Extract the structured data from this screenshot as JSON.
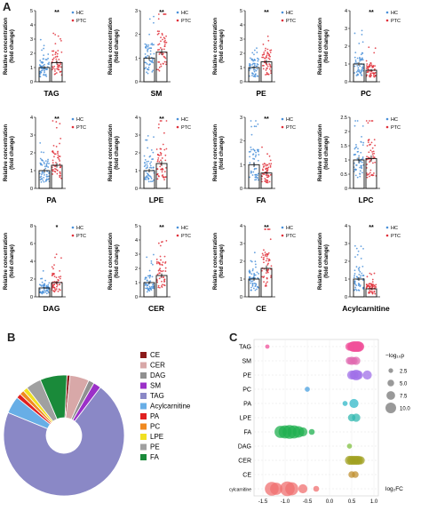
{
  "panel_letters": {
    "a": "A",
    "b": "B",
    "c": "C"
  },
  "legend": {
    "hc": "HC",
    "ptc": "PTC"
  },
  "colors": {
    "hc": "#4a90d9",
    "ptc": "#e0303a",
    "axis": "#222222"
  },
  "ylabel_top": "Relative concentration",
  "ylabel_bottom": "(fold change)",
  "chart_data": [
    {
      "type": "bar",
      "title": "TAG",
      "categories": [
        "HC",
        "PTC"
      ],
      "values": [
        1.0,
        1.35
      ],
      "significance": "**",
      "ylim": [
        0,
        5
      ],
      "yticks": [
        0,
        1,
        2,
        3,
        4,
        5
      ]
    },
    {
      "type": "bar",
      "title": "SM",
      "categories": [
        "HC",
        "PTC"
      ],
      "values": [
        1.0,
        1.25
      ],
      "significance": "**",
      "ylim": [
        0,
        3
      ],
      "yticks": [
        0,
        1,
        2,
        3
      ]
    },
    {
      "type": "bar",
      "title": "PE",
      "categories": [
        "HC",
        "PTC"
      ],
      "values": [
        1.0,
        1.4
      ],
      "significance": "**",
      "ylim": [
        0,
        5
      ],
      "yticks": [
        0,
        1,
        2,
        3,
        4,
        5
      ]
    },
    {
      "type": "bar",
      "title": "PC",
      "categories": [
        "HC",
        "PTC"
      ],
      "values": [
        1.0,
        0.65
      ],
      "significance": "**",
      "ylim": [
        0,
        4
      ],
      "yticks": [
        0,
        1,
        2,
        3,
        4
      ]
    },
    {
      "type": "bar",
      "title": "PA",
      "categories": [
        "HC",
        "PTC"
      ],
      "values": [
        1.0,
        1.3
      ],
      "significance": "**",
      "ylim": [
        0,
        4
      ],
      "yticks": [
        0,
        1,
        2,
        3,
        4
      ]
    },
    {
      "type": "bar",
      "title": "LPE",
      "categories": [
        "HC",
        "PTC"
      ],
      "values": [
        1.0,
        1.4
      ],
      "significance": "**",
      "ylim": [
        0,
        4
      ],
      "yticks": [
        0,
        1,
        2,
        3,
        4
      ]
    },
    {
      "type": "bar",
      "title": "FA",
      "categories": [
        "HC",
        "PTC"
      ],
      "values": [
        1.0,
        0.65
      ],
      "significance": "**",
      "ylim": [
        0,
        3
      ],
      "yticks": [
        0,
        1,
        2,
        3
      ]
    },
    {
      "type": "bar",
      "title": "LPC",
      "categories": [
        "HC",
        "PTC"
      ],
      "values": [
        1.0,
        1.05
      ],
      "significance": "",
      "ylim": [
        0,
        2.5
      ],
      "yticks": [
        0.0,
        0.5,
        1.0,
        1.5,
        2.0,
        2.5
      ]
    },
    {
      "type": "bar",
      "title": "DAG",
      "categories": [
        "HC",
        "PTC"
      ],
      "values": [
        1.0,
        1.6
      ],
      "significance": "*",
      "ylim": [
        0,
        8
      ],
      "yticks": [
        0,
        2,
        4,
        6,
        8
      ]
    },
    {
      "type": "bar",
      "title": "CER",
      "categories": [
        "HC",
        "PTC"
      ],
      "values": [
        1.0,
        1.5
      ],
      "significance": "**",
      "ylim": [
        0,
        5
      ],
      "yticks": [
        0,
        1,
        2,
        3,
        4,
        5
      ]
    },
    {
      "type": "bar",
      "title": "CE",
      "categories": [
        "HC",
        "PTC"
      ],
      "values": [
        1.0,
        1.6
      ],
      "significance": "**",
      "ylim": [
        0,
        4
      ],
      "yticks": [
        0,
        1,
        2,
        3,
        4
      ]
    },
    {
      "type": "bar",
      "title": "Acylcarnitine",
      "categories": [
        "HC",
        "PTC"
      ],
      "values": [
        1.0,
        0.45
      ],
      "significance": "**",
      "ylim": [
        0,
        4
      ],
      "yticks": [
        0,
        1,
        2,
        3,
        4
      ]
    },
    {
      "type": "pie",
      "slices": [
        {
          "label": "CE",
          "value": 0.8,
          "color": "#8b1a1a"
        },
        {
          "label": "CER",
          "value": 5,
          "color": "#d8a8a8"
        },
        {
          "label": "DAG",
          "value": 1.5,
          "color": "#909090"
        },
        {
          "label": "SM",
          "value": 2,
          "color": "#9b30c8"
        },
        {
          "label": "TAG",
          "value": 69,
          "color": "#8a88c6"
        },
        {
          "label": "Acylcarnitine",
          "value": 4.5,
          "color": "#68aee6"
        },
        {
          "label": "PA",
          "value": 1.2,
          "color": "#e02020"
        },
        {
          "label": "PC",
          "value": 1.2,
          "color": "#f08a20"
        },
        {
          "label": "LPE",
          "value": 1.2,
          "color": "#f0e020"
        },
        {
          "label": "PE",
          "value": 4,
          "color": "#a0a0a0"
        },
        {
          "label": "FA",
          "value": 7,
          "color": "#1a8a3a"
        }
      ]
    },
    {
      "type": "scatter",
      "categories": [
        "TAG",
        "SM",
        "PE",
        "PC",
        "PA",
        "LPE",
        "FA",
        "DAG",
        "CER",
        "CE",
        "Acylcarnitine"
      ],
      "xlim": [
        -1.7,
        1.1
      ],
      "xticks": [
        -1.5,
        -1.0,
        -0.5,
        0.0,
        0.5,
        1.0
      ],
      "xlabel": "log₂FC",
      "size_legend_title": "−log₁₀p",
      "size_legend": [
        2.5,
        5.0,
        7.5,
        10.0
      ],
      "colors": {
        "TAG": "#f0509a",
        "SM": "#e06ab0",
        "PE": "#a070e8",
        "PC": "#4aa0e0",
        "PA": "#30b8c8",
        "LPE": "#30b8b0",
        "FA": "#20b050",
        "DAG": "#80c040",
        "CER": "#a0a020",
        "CE": "#c09030",
        "Acylcarnitine": "#f07070"
      },
      "points": [
        {
          "cat": "TAG",
          "x": 0.5,
          "s": 4
        },
        {
          "cat": "TAG",
          "x": 0.52,
          "s": 4.5
        },
        {
          "cat": "TAG",
          "x": 0.55,
          "s": 5
        },
        {
          "cat": "TAG",
          "x": 0.58,
          "s": 4.5
        },
        {
          "cat": "TAG",
          "x": 0.6,
          "s": 5
        },
        {
          "cat": "TAG",
          "x": 0.63,
          "s": 4.5
        },
        {
          "cat": "TAG",
          "x": 0.65,
          "s": 5
        },
        {
          "cat": "TAG",
          "x": 0.68,
          "s": 4
        },
        {
          "cat": "TAG",
          "x": 0.45,
          "s": 3.5
        },
        {
          "cat": "TAG",
          "x": -1.4,
          "s": 1
        },
        {
          "cat": "SM",
          "x": 0.45,
          "s": 3
        },
        {
          "cat": "SM",
          "x": 0.5,
          "s": 3.5
        },
        {
          "cat": "SM",
          "x": 0.55,
          "s": 3
        },
        {
          "cat": "SM",
          "x": 0.6,
          "s": 3.5
        },
        {
          "cat": "PE",
          "x": 0.5,
          "s": 4
        },
        {
          "cat": "PE",
          "x": 0.55,
          "s": 4
        },
        {
          "cat": "PE",
          "x": 0.6,
          "s": 5
        },
        {
          "cat": "PE",
          "x": 0.65,
          "s": 4
        },
        {
          "cat": "PE",
          "x": 0.85,
          "s": 4
        },
        {
          "cat": "PC",
          "x": -0.5,
          "s": 1.5
        },
        {
          "cat": "PA",
          "x": 0.35,
          "s": 1.5
        },
        {
          "cat": "PA",
          "x": 0.55,
          "s": 4
        },
        {
          "cat": "LPE",
          "x": 0.5,
          "s": 3
        },
        {
          "cat": "LPE",
          "x": 0.6,
          "s": 3.5
        },
        {
          "cat": "FA",
          "x": -1.1,
          "s": 6
        },
        {
          "cat": "FA",
          "x": -1.0,
          "s": 6.5
        },
        {
          "cat": "FA",
          "x": -0.9,
          "s": 7
        },
        {
          "cat": "FA",
          "x": -0.8,
          "s": 6.5
        },
        {
          "cat": "FA",
          "x": -0.7,
          "s": 5.5
        },
        {
          "cat": "FA",
          "x": -0.6,
          "s": 4
        },
        {
          "cat": "FA",
          "x": -0.4,
          "s": 2
        },
        {
          "cat": "DAG",
          "x": 0.45,
          "s": 1.5
        },
        {
          "cat": "CER",
          "x": 0.45,
          "s": 4
        },
        {
          "cat": "CER",
          "x": 0.5,
          "s": 4
        },
        {
          "cat": "CER",
          "x": 0.55,
          "s": 4
        },
        {
          "cat": "CER",
          "x": 0.6,
          "s": 4
        },
        {
          "cat": "CER",
          "x": 0.65,
          "s": 4
        },
        {
          "cat": "CER",
          "x": 0.7,
          "s": 3.5
        },
        {
          "cat": "CE",
          "x": 0.5,
          "s": 2.5
        },
        {
          "cat": "CE",
          "x": 0.58,
          "s": 2.5
        },
        {
          "cat": "Acylcarnitine",
          "x": -1.3,
          "s": 7
        },
        {
          "cat": "Acylcarnitine",
          "x": -1.2,
          "s": 6
        },
        {
          "cat": "Acylcarnitine",
          "x": -0.95,
          "s": 7.5
        },
        {
          "cat": "Acylcarnitine",
          "x": -0.85,
          "s": 6.5
        },
        {
          "cat": "Acylcarnitine",
          "x": -0.6,
          "s": 4
        },
        {
          "cat": "Acylcarnitine",
          "x": -0.3,
          "s": 2
        }
      ]
    }
  ]
}
